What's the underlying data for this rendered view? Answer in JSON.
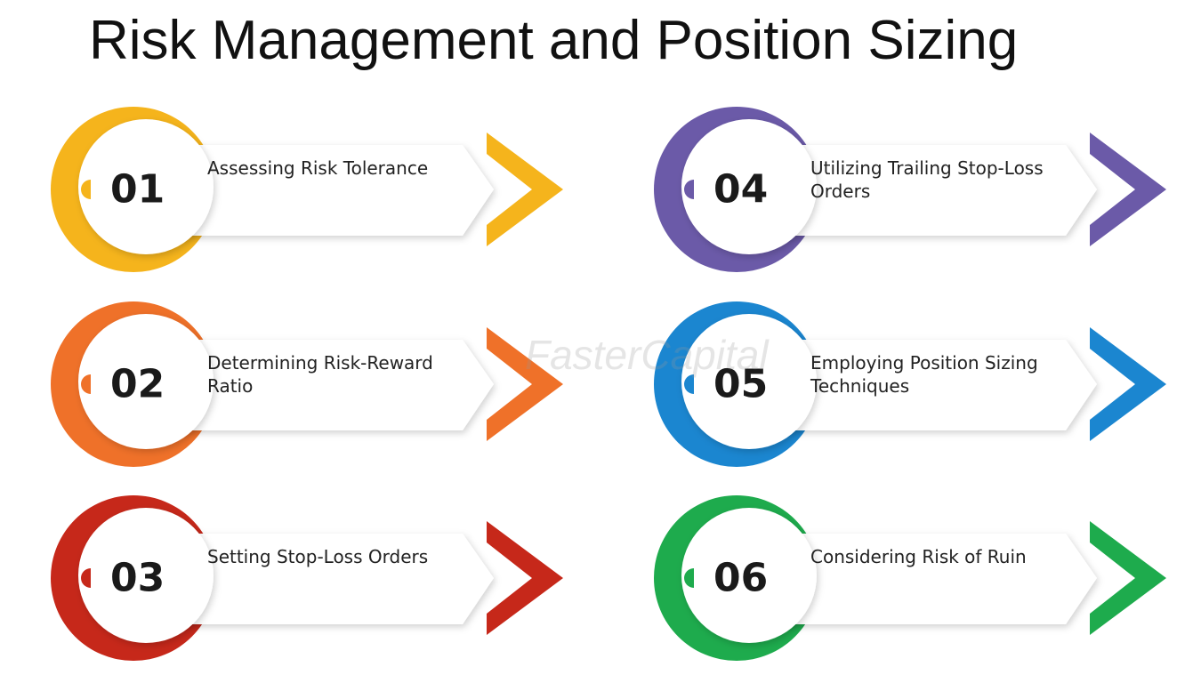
{
  "title": "Risk Management and Position Sizing",
  "watermark": "FasterCapital",
  "items": [
    {
      "number": "01",
      "label": "Assessing Risk Tolerance",
      "color": "#f5b41c"
    },
    {
      "number": "02",
      "label": "Determining Risk-Reward Ratio",
      "color": "#ef7129"
    },
    {
      "number": "03",
      "label": "Setting Stop-Loss Orders",
      "color": "#c6281a"
    },
    {
      "number": "04",
      "label": "Utilizing Trailing Stop-Loss Orders",
      "color": "#6b5aa8"
    },
    {
      "number": "05",
      "label": "Employing Position Sizing Techniques",
      "color": "#1b86d0"
    },
    {
      "number": "06",
      "label": "Considering Risk of Ruin",
      "color": "#1eab4d"
    }
  ]
}
